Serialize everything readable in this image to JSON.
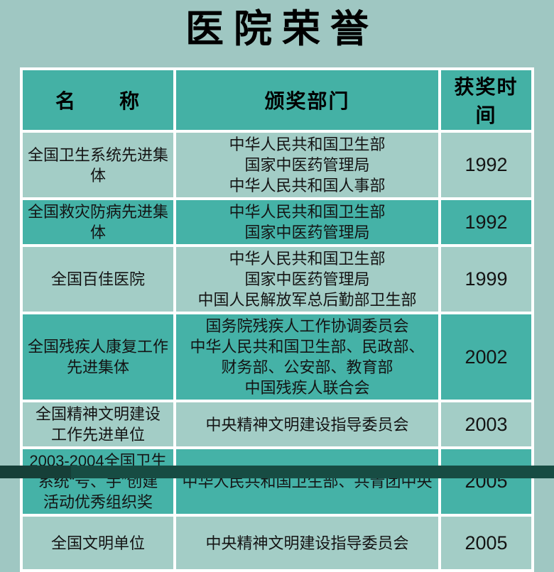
{
  "page": {
    "title": "医院荣誉",
    "background_color": "#9fc7c2",
    "accent_dark_teal": "#45b2a7",
    "accent_light_teal": "#a3cdc6",
    "grid_border_color": "#ffffff",
    "bottom_band_colors": [
      "#163f38",
      "#174c43"
    ]
  },
  "table": {
    "headers": [
      {
        "label": "名　　称"
      },
      {
        "label": "颁奖部门"
      },
      {
        "label": "获奖时间"
      }
    ],
    "rows": [
      {
        "shade": "light",
        "name_lines": [
          "全国卫生系统先进集体"
        ],
        "department_lines": [
          "中华人民共和国卫生部",
          "国家中医药管理局",
          "中华人民共和国人事部"
        ],
        "year": "1992"
      },
      {
        "shade": "dark",
        "name_lines": [
          "全国救灾防病先进集体"
        ],
        "department_lines": [
          "中华人民共和国卫生部",
          "国家中医药管理局"
        ],
        "year": "1992"
      },
      {
        "shade": "light",
        "name_lines": [
          "全国百佳医院"
        ],
        "department_lines": [
          "中华人民共和国卫生部",
          "国家中医药管理局",
          "中国人民解放军总后勤部卫生部"
        ],
        "year": "1999"
      },
      {
        "shade": "dark",
        "name_lines": [
          "全国残疾人康复工作",
          "先进集体"
        ],
        "department_lines": [
          "国务院残疾人工作协调委员会",
          "中华人民共和国卫生部、民政部、",
          "财务部、公安部、教育部",
          "中国残疾人联合会"
        ],
        "year": "2002"
      },
      {
        "shade": "light",
        "name_lines": [
          "全国精神文明建设",
          "工作先进单位"
        ],
        "department_lines": [
          "中央精神文明建设指导委员会"
        ],
        "year": "2003"
      },
      {
        "shade": "dark",
        "name_lines": [
          "2003-2004全国卫生",
          "系统“号、手”创建",
          "活动优秀组织奖"
        ],
        "department_lines": [
          "中华人民共和国卫生部、共青团中央"
        ],
        "year": "2005"
      },
      {
        "shade": "light",
        "name_lines": [
          "全国文明单位"
        ],
        "department_lines": [
          "中央精神文明建设指导委员会"
        ],
        "year": "2005"
      }
    ]
  }
}
